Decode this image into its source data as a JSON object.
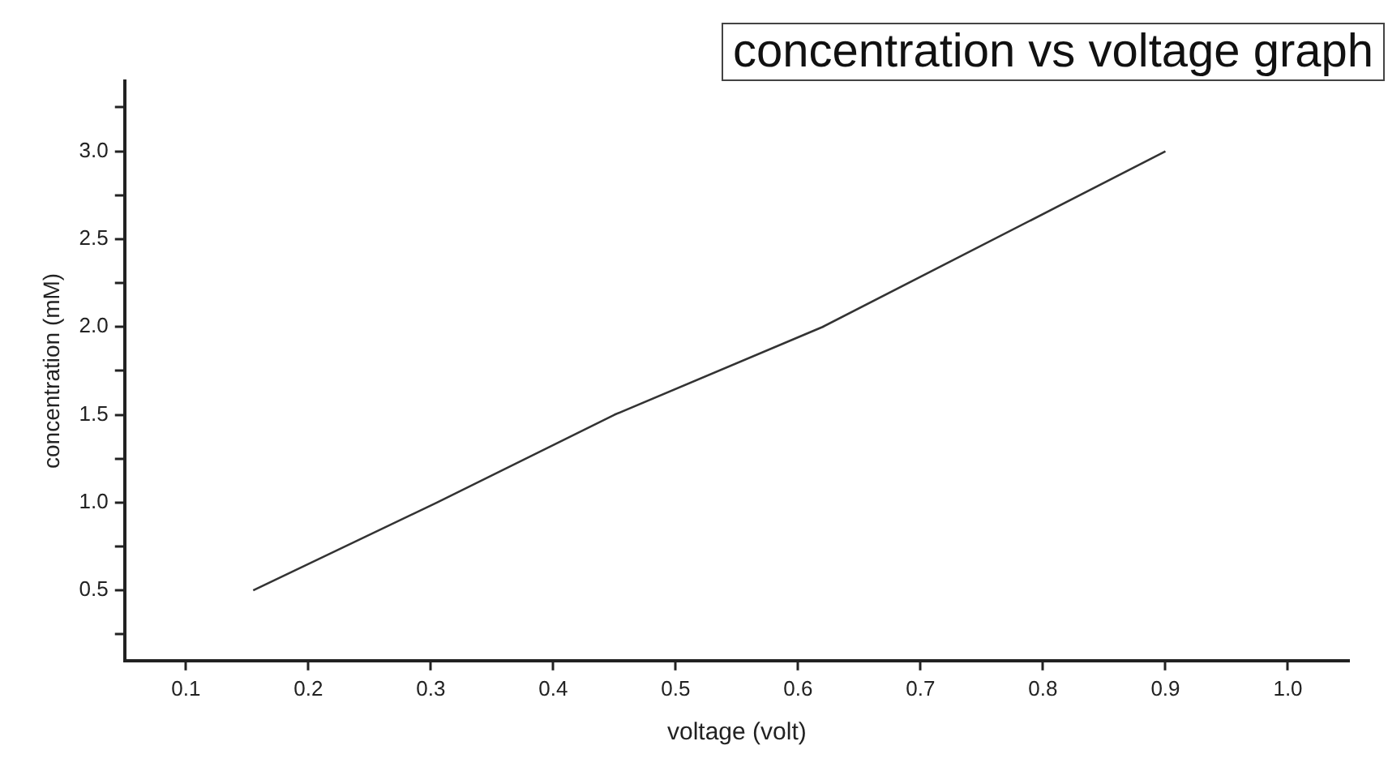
{
  "chart_data": {
    "type": "line",
    "title": "concentration vs voltage graph",
    "xlabel": "voltage (volt)",
    "ylabel": "concentration (mM)",
    "x": [
      0.155,
      0.305,
      0.45,
      0.62,
      0.9
    ],
    "series": [
      {
        "color": "#333333",
        "values": [
          0.5,
          1.0,
          1.5,
          2.0,
          3.0
        ]
      }
    ],
    "xlim": [
      0.05,
      1.05
    ],
    "xticks": [
      0.1,
      0.2,
      0.3,
      0.4,
      0.5,
      0.6,
      0.7,
      0.8,
      0.9,
      {
        "value": 1,
        "label": "1.0"
      }
    ],
    "ylim": [
      0.1,
      3.4
    ],
    "yticks": [
      {
        "value": 0.25,
        "label": null
      },
      0.5,
      {
        "value": 0.75,
        "label": null
      },
      {
        "value": 1,
        "label": "1.0"
      },
      {
        "value": 1.25,
        "label": null
      },
      1.5,
      {
        "value": 1.75,
        "label": null
      },
      {
        "value": 2,
        "label": "2.0"
      },
      {
        "value": 2.25,
        "label": null
      },
      2.5,
      {
        "value": 2.75,
        "label": null
      },
      {
        "value": 3,
        "label": "3.0"
      },
      {
        "value": 3.25,
        "label": null
      }
    ],
    "grid": false,
    "legend": false,
    "marker": "none",
    "line_style": "solid"
  }
}
